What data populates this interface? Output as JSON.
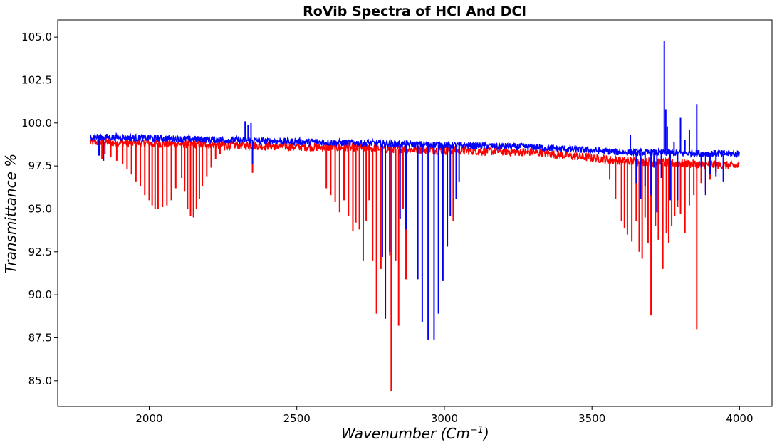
{
  "chart_data": {
    "type": "line",
    "title": "RoVib Spectra of HCl And DCl",
    "xlabel": "Wavenumber (Cm",
    "xlabel_exponent": "−1",
    "xlabel_close": ")",
    "ylabel": "Transmittance %",
    "xlim": [
      1690,
      4110
    ],
    "ylim": [
      83.5,
      106.0
    ],
    "xticks": [
      2000,
      2500,
      3000,
      3500,
      4000
    ],
    "xtick_labels": [
      "2000",
      "2500",
      "3000",
      "3500",
      "4000"
    ],
    "yticks": [
      85.0,
      87.5,
      90.0,
      92.5,
      95.0,
      97.5,
      100.0,
      102.5,
      105.0
    ],
    "ytick_labels": [
      "85.0",
      "87.5",
      "90.0",
      "92.5",
      "95.0",
      "97.5",
      "100.0",
      "102.5",
      "105.0"
    ],
    "grid": false,
    "series": [
      {
        "color": "#ff0000",
        "baseline": [
          [
            1800,
            98.9
          ],
          [
            2300,
            98.7
          ],
          [
            2800,
            98.5
          ],
          [
            3300,
            98.3
          ],
          [
            3600,
            97.8
          ],
          [
            4000,
            97.5
          ]
        ],
        "noise": 0.25,
        "lines": [
          [
            1840,
            97.9
          ],
          [
            1850,
            98.2
          ],
          [
            1870,
            98.0
          ],
          [
            1890,
            97.8
          ],
          [
            1910,
            97.6
          ],
          [
            1925,
            97.3
          ],
          [
            1940,
            97.0
          ],
          [
            1955,
            96.6
          ],
          [
            1970,
            96.3
          ],
          [
            1985,
            95.8
          ],
          [
            2000,
            95.5
          ],
          [
            2010,
            95.2
          ],
          [
            2020,
            95.0
          ],
          [
            2030,
            95.0
          ],
          [
            2045,
            95.1
          ],
          [
            2060,
            95.2
          ],
          [
            2075,
            95.5
          ],
          [
            2090,
            96.2
          ],
          [
            2110,
            96.8
          ],
          [
            2120,
            96.0
          ],
          [
            2130,
            95.0
          ],
          [
            2140,
            94.6
          ],
          [
            2150,
            94.5
          ],
          [
            2160,
            95.0
          ],
          [
            2170,
            95.6
          ],
          [
            2180,
            96.3
          ],
          [
            2195,
            96.9
          ],
          [
            2210,
            97.4
          ],
          [
            2225,
            97.9
          ],
          [
            2240,
            98.2
          ],
          [
            2255,
            98.4
          ],
          [
            2350,
            97.1
          ],
          [
            2600,
            96.2
          ],
          [
            2615,
            95.8
          ],
          [
            2630,
            95.4
          ],
          [
            2645,
            94.8
          ],
          [
            2660,
            95.5
          ],
          [
            2675,
            94.6
          ],
          [
            2690,
            93.7
          ],
          [
            2700,
            94.2
          ],
          [
            2712,
            93.8
          ],
          [
            2725,
            92.0
          ],
          [
            2735,
            94.3
          ],
          [
            2745,
            95.5
          ],
          [
            2757,
            92.0
          ],
          [
            2770,
            88.9
          ],
          [
            2785,
            91.5
          ],
          [
            2800,
            88.7
          ],
          [
            2815,
            92.3
          ],
          [
            2820,
            84.4
          ],
          [
            2835,
            92.0
          ],
          [
            2845,
            88.2
          ],
          [
            2860,
            95.0
          ],
          [
            2870,
            90.9
          ],
          [
            3030,
            94.3
          ],
          [
            3560,
            96.7
          ],
          [
            3580,
            95.6
          ],
          [
            3600,
            94.3
          ],
          [
            3610,
            93.9
          ],
          [
            3620,
            93.5
          ],
          [
            3635,
            93.1
          ],
          [
            3650,
            94.3
          ],
          [
            3660,
            92.5
          ],
          [
            3670,
            92.1
          ],
          [
            3680,
            94.5
          ],
          [
            3690,
            93.0
          ],
          [
            3700,
            88.8
          ],
          [
            3715,
            94.0
          ],
          [
            3725,
            93.2
          ],
          [
            3740,
            91.5
          ],
          [
            3752,
            93.6
          ],
          [
            3760,
            93.0
          ],
          [
            3770,
            94.0
          ],
          [
            3780,
            94.6
          ],
          [
            3790,
            95.1
          ],
          [
            3800,
            94.7
          ],
          [
            3815,
            93.6
          ],
          [
            3830,
            95.2
          ],
          [
            3845,
            95.8
          ],
          [
            3855,
            88.0
          ],
          [
            3870,
            96.5
          ],
          [
            3885,
            96.0
          ],
          [
            3900,
            96.7
          ],
          [
            3920,
            97.1
          ]
        ]
      },
      {
        "color": "#0000ff",
        "baseline": [
          [
            1800,
            99.2
          ],
          [
            2300,
            99.0
          ],
          [
            2800,
            98.8
          ],
          [
            3300,
            98.6
          ],
          [
            3600,
            98.3
          ],
          [
            4000,
            98.2
          ]
        ],
        "noise": 0.2,
        "lines": [
          [
            1830,
            98.1
          ],
          [
            1845,
            97.8
          ],
          [
            2325,
            100.1
          ],
          [
            2335,
            99.9
          ],
          [
            2345,
            100.0
          ],
          [
            2350,
            97.6
          ],
          [
            2790,
            92.2
          ],
          [
            2800,
            88.6
          ],
          [
            2815,
            92.5
          ],
          [
            2850,
            94.4
          ],
          [
            2870,
            93.8
          ],
          [
            2910,
            90.9
          ],
          [
            2925,
            88.4
          ],
          [
            2945,
            87.4
          ],
          [
            2965,
            87.4
          ],
          [
            2980,
            88.9
          ],
          [
            2995,
            90.8
          ],
          [
            3010,
            92.8
          ],
          [
            3020,
            94.6
          ],
          [
            3040,
            95.6
          ],
          [
            3050,
            96.6
          ],
          [
            3630,
            99.3
          ],
          [
            3650,
            96.5
          ],
          [
            3665,
            95.6
          ],
          [
            3680,
            96.3
          ],
          [
            3700,
            95.8
          ],
          [
            3710,
            97.4
          ],
          [
            3720,
            94.8
          ],
          [
            3735,
            96.8
          ],
          [
            3745,
            104.8
          ],
          [
            3750,
            100.8
          ],
          [
            3755,
            99.8
          ],
          [
            3765,
            95.5
          ],
          [
            3778,
            98.9
          ],
          [
            3790,
            95.5
          ],
          [
            3800,
            100.3
          ],
          [
            3815,
            99.0
          ],
          [
            3830,
            99.6
          ],
          [
            3855,
            101.1
          ],
          [
            3870,
            97.4
          ],
          [
            3885,
            95.8
          ],
          [
            3900,
            97.0
          ],
          [
            3920,
            96.9
          ],
          [
            3945,
            96.6
          ]
        ]
      }
    ]
  }
}
